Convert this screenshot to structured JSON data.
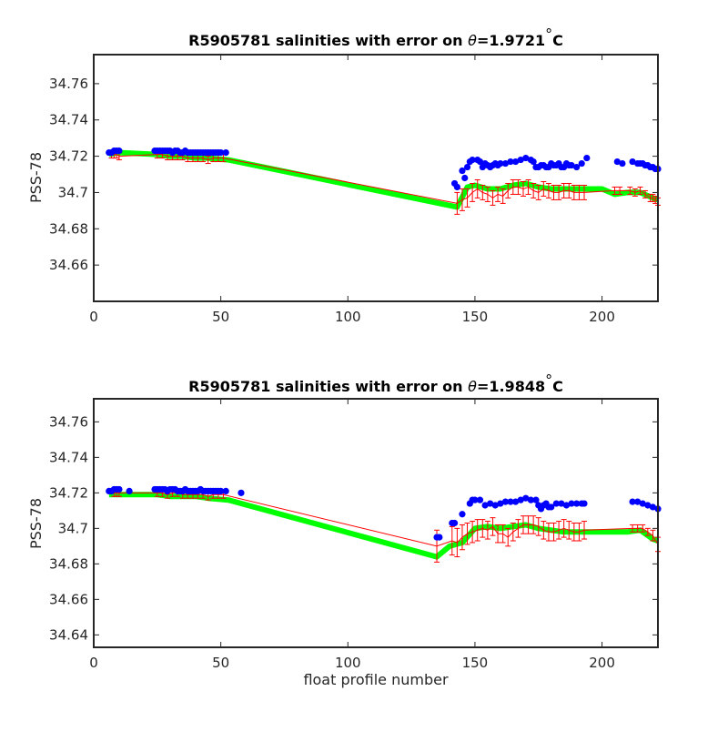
{
  "colors": {
    "background": "#ffffff",
    "axis": "#262626",
    "raw_points": "#0000ff",
    "calibrated": "#ff0000",
    "mapped": "#00ff00"
  },
  "chart_data": [
    {
      "type": "scatter",
      "title_prefix": "R5905781 salinities with error on ",
      "title_symbol": "θ",
      "title_suffix": "=1.9721",
      "title_degree": "°",
      "title_unit": "C",
      "xlabel": "",
      "ylabel": "PSS-78",
      "xlim": [
        0,
        222
      ],
      "ylim": [
        34.64,
        34.776
      ],
      "xticks": [
        0,
        50,
        100,
        150,
        200
      ],
      "yticks": [
        34.66,
        34.68,
        34.7,
        34.72,
        34.74,
        34.76
      ],
      "ytick_labels": [
        "34.66",
        "34.68",
        "34.7",
        "34.72",
        "34.74",
        "34.76"
      ],
      "grid": false,
      "series": [
        {
          "role": "mapped",
          "x": [
            6,
            10,
            25,
            30,
            35,
            40,
            45,
            53,
            143,
            147,
            150,
            155,
            160,
            165,
            170,
            175,
            180,
            185,
            190,
            195,
            200,
            205,
            210,
            215,
            220,
            222
          ],
          "y": [
            34.721,
            34.722,
            34.721,
            34.72,
            34.72,
            34.719,
            34.719,
            34.718,
            34.692,
            34.703,
            34.704,
            34.702,
            34.702,
            34.704,
            34.705,
            34.703,
            34.702,
            34.702,
            34.702,
            34.702,
            34.702,
            34.699,
            34.7,
            34.7,
            34.697,
            34.696
          ]
        },
        {
          "role": "raw",
          "x": [
            6,
            7,
            8,
            9,
            10,
            24,
            25,
            26,
            27,
            28,
            29,
            30,
            31,
            32,
            33,
            34,
            35,
            36,
            37,
            38,
            39,
            40,
            41,
            42,
            43,
            44,
            45,
            46,
            47,
            48,
            49,
            50,
            52,
            142,
            143,
            145,
            146,
            147,
            148,
            149,
            151,
            152,
            153,
            154,
            155,
            156,
            157,
            158,
            159,
            160,
            162,
            164,
            166,
            168,
            170,
            172,
            173,
            174,
            175,
            176,
            177,
            178,
            179,
            180,
            181,
            182,
            183,
            184,
            185,
            186,
            187,
            188,
            190,
            192,
            194,
            206,
            208,
            212,
            214,
            215,
            216,
            217,
            218,
            219,
            220,
            221,
            222
          ],
          "y": [
            34.722,
            34.722,
            34.723,
            34.723,
            34.723,
            34.723,
            34.723,
            34.723,
            34.723,
            34.723,
            34.723,
            34.723,
            34.722,
            34.723,
            34.723,
            34.722,
            34.722,
            34.723,
            34.722,
            34.722,
            34.722,
            34.722,
            34.722,
            34.722,
            34.722,
            34.722,
            34.722,
            34.722,
            34.722,
            34.722,
            34.722,
            34.722,
            34.722,
            34.705,
            34.703,
            34.712,
            34.708,
            34.714,
            34.717,
            34.718,
            34.718,
            34.717,
            34.714,
            34.716,
            34.715,
            34.714,
            34.715,
            34.716,
            34.715,
            34.716,
            34.716,
            34.717,
            34.717,
            34.718,
            34.719,
            34.718,
            34.717,
            34.714,
            34.714,
            34.715,
            34.715,
            34.714,
            34.714,
            34.716,
            34.715,
            34.715,
            34.716,
            34.714,
            34.714,
            34.716,
            34.715,
            34.715,
            34.714,
            34.716,
            34.719,
            34.717,
            34.716,
            34.717,
            34.716,
            34.716,
            34.716,
            34.715,
            34.715,
            34.714,
            34.714,
            34.713,
            34.713
          ]
        },
        {
          "role": "calibrated",
          "x": [
            7,
            8,
            9,
            10,
            25,
            27,
            29,
            31,
            33,
            35,
            37,
            39,
            41,
            43,
            45,
            47,
            49,
            51,
            143,
            145,
            147,
            149,
            151,
            153,
            155,
            157,
            159,
            161,
            163,
            165,
            167,
            169,
            171,
            173,
            175,
            177,
            179,
            181,
            183,
            185,
            187,
            189,
            191,
            193,
            205,
            207,
            211,
            213,
            215,
            217,
            219,
            220,
            221,
            222
          ],
          "y": [
            34.721,
            34.721,
            34.721,
            34.72,
            34.721,
            34.721,
            34.72,
            34.72,
            34.72,
            34.72,
            34.719,
            34.719,
            34.719,
            34.719,
            34.718,
            34.719,
            34.719,
            34.719,
            34.694,
            34.696,
            34.697,
            34.7,
            34.702,
            34.7,
            34.699,
            34.697,
            34.699,
            34.698,
            34.701,
            34.703,
            34.703,
            34.702,
            34.703,
            34.701,
            34.7,
            34.702,
            34.701,
            34.7,
            34.7,
            34.701,
            34.701,
            34.7,
            34.7,
            34.7,
            34.701,
            34.701,
            34.701,
            34.7,
            34.701,
            34.699,
            34.697,
            34.697,
            34.696,
            34.695
          ],
          "err": [
            0.002,
            0.002,
            0.002,
            0.002,
            0.002,
            0.002,
            0.002,
            0.002,
            0.002,
            0.002,
            0.002,
            0.002,
            0.002,
            0.002,
            0.002,
            0.002,
            0.002,
            0.002,
            0.006,
            0.006,
            0.005,
            0.005,
            0.005,
            0.004,
            0.004,
            0.004,
            0.004,
            0.004,
            0.004,
            0.004,
            0.004,
            0.004,
            0.004,
            0.004,
            0.004,
            0.004,
            0.004,
            0.004,
            0.004,
            0.004,
            0.004,
            0.004,
            0.004,
            0.004,
            0.002,
            0.002,
            0.002,
            0.002,
            0.002,
            0.002,
            0.002,
            0.002,
            0.002,
            0.002
          ]
        }
      ]
    },
    {
      "type": "scatter",
      "title_prefix": "R5905781 salinities with error on ",
      "title_symbol": "θ",
      "title_suffix": "=1.9848",
      "title_degree": "°",
      "title_unit": "C",
      "xlabel": "float profile number",
      "ylabel": "PSS-78",
      "xlim": [
        0,
        222
      ],
      "ylim": [
        34.633,
        34.773
      ],
      "xticks": [
        0,
        50,
        100,
        150,
        200
      ],
      "yticks": [
        34.64,
        34.66,
        34.68,
        34.7,
        34.72,
        34.74,
        34.76
      ],
      "ytick_labels": [
        "34.64",
        "34.66",
        "34.68",
        "34.7",
        "34.72",
        "34.74",
        "34.76"
      ],
      "grid": false,
      "series": [
        {
          "role": "mapped",
          "x": [
            6,
            10,
            25,
            30,
            35,
            40,
            45,
            53,
            135,
            140,
            145,
            150,
            155,
            160,
            165,
            170,
            175,
            180,
            185,
            190,
            195,
            200,
            205,
            210,
            215,
            220,
            222
          ],
          "y": [
            34.719,
            34.719,
            34.719,
            34.718,
            34.718,
            34.718,
            34.717,
            34.716,
            34.684,
            34.69,
            34.692,
            34.7,
            34.701,
            34.7,
            34.701,
            34.702,
            34.7,
            34.699,
            34.698,
            34.698,
            34.698,
            34.698,
            34.698,
            34.698,
            34.699,
            34.694,
            34.693
          ]
        },
        {
          "role": "raw",
          "x": [
            6,
            7,
            8,
            9,
            10,
            14,
            24,
            25,
            26,
            27,
            28,
            29,
            30,
            31,
            32,
            33,
            34,
            35,
            36,
            37,
            38,
            39,
            40,
            41,
            42,
            43,
            44,
            45,
            46,
            47,
            48,
            49,
            50,
            52,
            58,
            135,
            136,
            141,
            142,
            145,
            148,
            149,
            150,
            152,
            154,
            156,
            158,
            160,
            162,
            164,
            166,
            168,
            170,
            172,
            174,
            175,
            176,
            177,
            178,
            179,
            180,
            182,
            184,
            186,
            188,
            190,
            192,
            193,
            212,
            214,
            216,
            218,
            220,
            222
          ],
          "y": [
            34.721,
            34.721,
            34.722,
            34.722,
            34.722,
            34.721,
            34.722,
            34.722,
            34.722,
            34.722,
            34.722,
            34.721,
            34.722,
            34.722,
            34.722,
            34.721,
            34.721,
            34.721,
            34.722,
            34.721,
            34.721,
            34.721,
            34.721,
            34.721,
            34.722,
            34.721,
            34.721,
            34.721,
            34.721,
            34.721,
            34.721,
            34.721,
            34.721,
            34.721,
            34.72,
            34.695,
            34.695,
            34.703,
            34.703,
            34.708,
            34.714,
            34.716,
            34.716,
            34.716,
            34.713,
            34.714,
            34.713,
            34.714,
            34.715,
            34.715,
            34.715,
            34.716,
            34.717,
            34.716,
            34.716,
            34.713,
            34.711,
            34.713,
            34.714,
            34.712,
            34.712,
            34.714,
            34.714,
            34.713,
            34.714,
            34.714,
            34.714,
            34.714,
            34.715,
            34.715,
            34.714,
            34.713,
            34.712,
            34.711
          ],
          "err": []
        },
        {
          "role": "calibrated",
          "x": [
            8,
            9,
            10,
            25,
            27,
            29,
            31,
            33,
            35,
            37,
            39,
            41,
            43,
            45,
            47,
            49,
            51,
            135,
            141,
            143,
            145,
            147,
            149,
            151,
            153,
            155,
            157,
            159,
            161,
            163,
            165,
            167,
            169,
            171,
            173,
            175,
            177,
            179,
            181,
            183,
            185,
            187,
            189,
            191,
            193,
            212,
            214,
            216,
            218,
            220,
            222
          ],
          "y": [
            34.72,
            34.72,
            34.72,
            34.72,
            34.72,
            34.719,
            34.72,
            34.72,
            34.719,
            34.719,
            34.719,
            34.719,
            34.719,
            34.718,
            34.719,
            34.719,
            34.719,
            34.69,
            34.693,
            34.692,
            34.695,
            34.697,
            34.698,
            34.699,
            34.7,
            34.699,
            34.701,
            34.697,
            34.697,
            34.695,
            34.698,
            34.7,
            34.702,
            34.702,
            34.702,
            34.701,
            34.699,
            34.698,
            34.698,
            34.699,
            34.7,
            34.699,
            34.698,
            34.698,
            34.699,
            34.7,
            34.7,
            34.7,
            34.698,
            34.696,
            34.691
          ],
          "err": [
            0.002,
            0.002,
            0.002,
            0.002,
            0.002,
            0.002,
            0.002,
            0.002,
            0.002,
            0.002,
            0.002,
            0.002,
            0.002,
            0.002,
            0.002,
            0.002,
            0.002,
            0.009,
            0.008,
            0.008,
            0.007,
            0.006,
            0.006,
            0.006,
            0.005,
            0.005,
            0.005,
            0.005,
            0.005,
            0.005,
            0.005,
            0.005,
            0.005,
            0.005,
            0.005,
            0.005,
            0.005,
            0.005,
            0.005,
            0.005,
            0.005,
            0.005,
            0.005,
            0.005,
            0.005,
            0.002,
            0.002,
            0.002,
            0.002,
            0.003,
            0.004
          ]
        }
      ]
    }
  ]
}
